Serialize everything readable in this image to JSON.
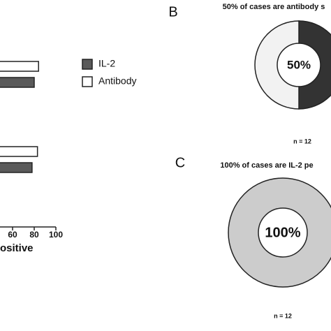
{
  "chart_data": [
    {
      "type": "bar",
      "orientation": "horizontal",
      "categories": [
        null,
        null
      ],
      "series": [
        {
          "name": "IL-2",
          "color": "#5a5a5a",
          "values": [
            80,
            78
          ]
        },
        {
          "name": "Antibody",
          "color": "#ffffff",
          "values": [
            84,
            83
          ]
        }
      ],
      "xlim": [
        0,
        100
      ],
      "xticks": [
        60,
        80,
        100
      ],
      "xlabel": "ositive"
    },
    {
      "type": "pie",
      "panel": "B",
      "title": "50% of cases are antibody s",
      "values": [
        50,
        50
      ],
      "colors": [
        "#333333",
        "#f2f2f2"
      ],
      "center_label": "50%",
      "note": "n = 12"
    },
    {
      "type": "pie",
      "panel": "C",
      "title": "100% of cases are IL-2 pe",
      "values": [
        100
      ],
      "colors": [
        "#cccccc"
      ],
      "center_label": "100%",
      "note": "n = 12"
    }
  ]
}
